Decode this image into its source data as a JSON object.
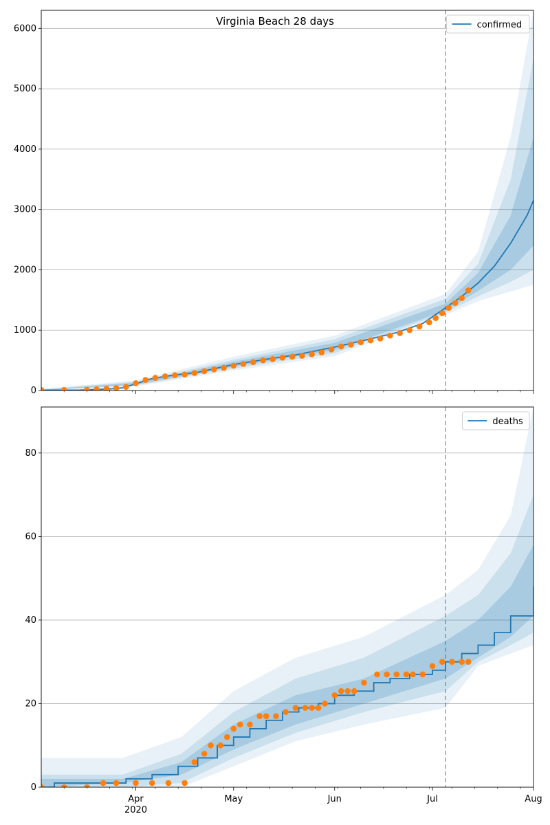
{
  "chart_data": [
    {
      "type": "line",
      "title": "Virginia Beach 28 days",
      "xlabel": "",
      "ylabel": "",
      "xlim": [
        "2020-03-03",
        "2020-08-01"
      ],
      "ylim": [
        0,
        6300
      ],
      "yticks": [
        0,
        1000,
        2000,
        3000,
        4000,
        5000,
        6000
      ],
      "grid": "y",
      "legend": {
        "placement": "top-right",
        "entries": [
          "confirmed"
        ]
      },
      "forecast_start": "2020-07-05",
      "series": [
        {
          "name": "confirmed",
          "kind": "model-line",
          "color": "#1f77b4",
          "x": [
            "2020-03-03",
            "2020-03-15",
            "2020-03-24",
            "2020-03-28",
            "2020-04-01",
            "2020-04-05",
            "2020-04-10",
            "2020-04-15",
            "2020-04-20",
            "2020-04-25",
            "2020-05-01",
            "2020-05-10",
            "2020-05-20",
            "2020-06-01",
            "2020-06-10",
            "2020-06-20",
            "2020-06-28",
            "2020-07-05",
            "2020-07-10",
            "2020-07-15",
            "2020-07-20",
            "2020-07-25",
            "2020-07-30",
            "2020-08-01"
          ],
          "y": [
            5,
            8,
            25,
            45,
            110,
            185,
            235,
            270,
            300,
            360,
            430,
            510,
            590,
            720,
            830,
            960,
            1110,
            1370,
            1560,
            1780,
            2060,
            2440,
            2900,
            3150
          ]
        },
        {
          "name": "observed confirmed",
          "kind": "points",
          "color": "#ff7f0e",
          "x": [
            "2020-03-03",
            "2020-03-10",
            "2020-03-17",
            "2020-03-20",
            "2020-03-23",
            "2020-03-26",
            "2020-03-29",
            "2020-04-01",
            "2020-04-04",
            "2020-04-07",
            "2020-04-10",
            "2020-04-13",
            "2020-04-16",
            "2020-04-19",
            "2020-04-22",
            "2020-04-25",
            "2020-04-28",
            "2020-05-01",
            "2020-05-04",
            "2020-05-07",
            "2020-05-10",
            "2020-05-13",
            "2020-05-16",
            "2020-05-19",
            "2020-05-22",
            "2020-05-25",
            "2020-05-28",
            "2020-05-31",
            "2020-06-03",
            "2020-06-06",
            "2020-06-09",
            "2020-06-12",
            "2020-06-15",
            "2020-06-18",
            "2020-06-21",
            "2020-06-24",
            "2020-06-27",
            "2020-06-30",
            "2020-07-02",
            "2020-07-04",
            "2020-07-06",
            "2020-07-08",
            "2020-07-10",
            "2020-07-12"
          ],
          "y": [
            10,
            10,
            12,
            20,
            30,
            40,
            60,
            120,
            175,
            210,
            235,
            255,
            265,
            290,
            320,
            350,
            375,
            410,
            440,
            470,
            500,
            520,
            545,
            560,
            575,
            600,
            630,
            680,
            730,
            760,
            800,
            830,
            860,
            910,
            950,
            1000,
            1060,
            1130,
            1200,
            1280,
            1370,
            1450,
            1530,
            1660
          ]
        }
      ],
      "bands": [
        {
          "name": "widest",
          "x": [
            "2020-03-03",
            "2020-04-01",
            "2020-05-01",
            "2020-06-01",
            "2020-07-05",
            "2020-07-15",
            "2020-07-25",
            "2020-08-01"
          ],
          "lower": [
            0,
            70,
            330,
            570,
            1250,
            1480,
            1640,
            1750
          ],
          "upper": [
            25,
            170,
            560,
            910,
            1600,
            2300,
            4200,
            6300
          ]
        },
        {
          "name": "wide",
          "x": [
            "2020-03-03",
            "2020-04-01",
            "2020-05-01",
            "2020-06-01",
            "2020-07-05",
            "2020-07-15",
            "2020-07-25",
            "2020-08-01"
          ],
          "lower": [
            2,
            85,
            365,
            620,
            1290,
            1560,
            1800,
            2000
          ],
          "upper": [
            18,
            145,
            510,
            850,
            1520,
            2100,
            3500,
            5500
          ]
        },
        {
          "name": "narrow",
          "x": [
            "2020-03-03",
            "2020-04-01",
            "2020-05-01",
            "2020-06-01",
            "2020-07-05",
            "2020-07-15",
            "2020-07-25",
            "2020-08-01"
          ],
          "lower": [
            4,
            95,
            395,
            670,
            1320,
            1650,
            2000,
            2400
          ],
          "upper": [
            12,
            130,
            475,
            790,
            1440,
            1950,
            2900,
            4200
          ]
        }
      ],
      "xticks": [
        {
          "date": "2020-04-01",
          "label": "Apr",
          "sub": "2020"
        },
        {
          "date": "2020-05-01",
          "label": "May",
          "sub": ""
        },
        {
          "date": "2020-06-01",
          "label": "Jun",
          "sub": ""
        },
        {
          "date": "2020-07-01",
          "label": "Jul",
          "sub": ""
        },
        {
          "date": "2020-08-01",
          "label": "Aug",
          "sub": ""
        }
      ]
    },
    {
      "type": "line",
      "title": "",
      "xlabel": "",
      "ylabel": "",
      "xlim": [
        "2020-03-03",
        "2020-08-01"
      ],
      "ylim": [
        0,
        91
      ],
      "yticks": [
        0,
        20,
        40,
        60,
        80
      ],
      "grid": "y",
      "legend": {
        "placement": "top-right",
        "entries": [
          "deaths"
        ]
      },
      "forecast_start": "2020-07-05",
      "series": [
        {
          "name": "deaths",
          "kind": "model-step",
          "color": "#1f77b4",
          "x": [
            "2020-03-03",
            "2020-03-07",
            "2020-03-23",
            "2020-03-29",
            "2020-04-06",
            "2020-04-14",
            "2020-04-20",
            "2020-04-26",
            "2020-05-01",
            "2020-05-06",
            "2020-05-11",
            "2020-05-16",
            "2020-05-21",
            "2020-05-27",
            "2020-06-01",
            "2020-06-07",
            "2020-06-13",
            "2020-06-18",
            "2020-06-24",
            "2020-07-01",
            "2020-07-05",
            "2020-07-10",
            "2020-07-15",
            "2020-07-20",
            "2020-07-25",
            "2020-08-01"
          ],
          "y": [
            0,
            1,
            1,
            2,
            3,
            5,
            7,
            10,
            12,
            14,
            16,
            18,
            19,
            20,
            22,
            23,
            25,
            26,
            27,
            28,
            30,
            32,
            34,
            37,
            41,
            48
          ]
        },
        {
          "name": "observed deaths",
          "kind": "points",
          "color": "#ff7f0e",
          "x": [
            "2020-03-03",
            "2020-03-10",
            "2020-03-17",
            "2020-03-22",
            "2020-03-26",
            "2020-04-01",
            "2020-04-06",
            "2020-04-11",
            "2020-04-16",
            "2020-04-19",
            "2020-04-22",
            "2020-04-24",
            "2020-04-27",
            "2020-04-29",
            "2020-05-01",
            "2020-05-03",
            "2020-05-06",
            "2020-05-09",
            "2020-05-11",
            "2020-05-14",
            "2020-05-17",
            "2020-05-20",
            "2020-05-23",
            "2020-05-25",
            "2020-05-27",
            "2020-05-29",
            "2020-06-01",
            "2020-06-03",
            "2020-06-05",
            "2020-06-07",
            "2020-06-10",
            "2020-06-14",
            "2020-06-17",
            "2020-06-20",
            "2020-06-23",
            "2020-06-25",
            "2020-06-28",
            "2020-07-01",
            "2020-07-04",
            "2020-07-07",
            "2020-07-10",
            "2020-07-12"
          ],
          "y": [
            0,
            0,
            0,
            1,
            1,
            1,
            1,
            1,
            1,
            6,
            8,
            10,
            10,
            12,
            14,
            15,
            15,
            17,
            17,
            17,
            18,
            19,
            19,
            19,
            19,
            20,
            22,
            23,
            23,
            23,
            25,
            27,
            27,
            27,
            27,
            27,
            27,
            29,
            30,
            30,
            30,
            30
          ]
        }
      ],
      "bands": [
        {
          "name": "widest",
          "x": [
            "2020-03-03",
            "2020-03-28",
            "2020-04-15",
            "2020-05-01",
            "2020-05-20",
            "2020-06-10",
            "2020-07-05",
            "2020-07-15",
            "2020-07-25",
            "2020-08-01"
          ],
          "lower": [
            0,
            0,
            0,
            5,
            11,
            15,
            19,
            29,
            32,
            34
          ],
          "upper": [
            7,
            7,
            12,
            23,
            31,
            36,
            46,
            52,
            65,
            91
          ]
        },
        {
          "name": "wide",
          "x": [
            "2020-03-03",
            "2020-03-28",
            "2020-04-15",
            "2020-05-01",
            "2020-05-20",
            "2020-06-10",
            "2020-07-05",
            "2020-07-15",
            "2020-07-25",
            "2020-08-01"
          ],
          "lower": [
            0,
            0,
            1,
            7,
            13,
            18,
            23,
            30,
            34,
            37
          ],
          "upper": [
            3,
            3,
            8,
            18,
            26,
            31,
            41,
            46,
            56,
            70
          ]
        },
        {
          "name": "narrow",
          "x": [
            "2020-03-03",
            "2020-03-28",
            "2020-04-15",
            "2020-05-01",
            "2020-05-20",
            "2020-06-10",
            "2020-07-05",
            "2020-07-15",
            "2020-07-25",
            "2020-08-01"
          ],
          "lower": [
            0,
            1,
            3,
            9,
            15,
            20,
            26,
            31,
            36,
            41
          ],
          "upper": [
            2,
            2,
            6,
            15,
            22,
            26,
            35,
            40,
            48,
            58
          ]
        }
      ],
      "xticks": [
        {
          "date": "2020-04-01",
          "label": "Apr",
          "sub": "2020"
        },
        {
          "date": "2020-05-01",
          "label": "May",
          "sub": ""
        },
        {
          "date": "2020-06-01",
          "label": "Jun",
          "sub": ""
        },
        {
          "date": "2020-07-01",
          "label": "Jul",
          "sub": ""
        },
        {
          "date": "2020-08-01",
          "label": "Aug",
          "sub": ""
        }
      ]
    }
  ]
}
